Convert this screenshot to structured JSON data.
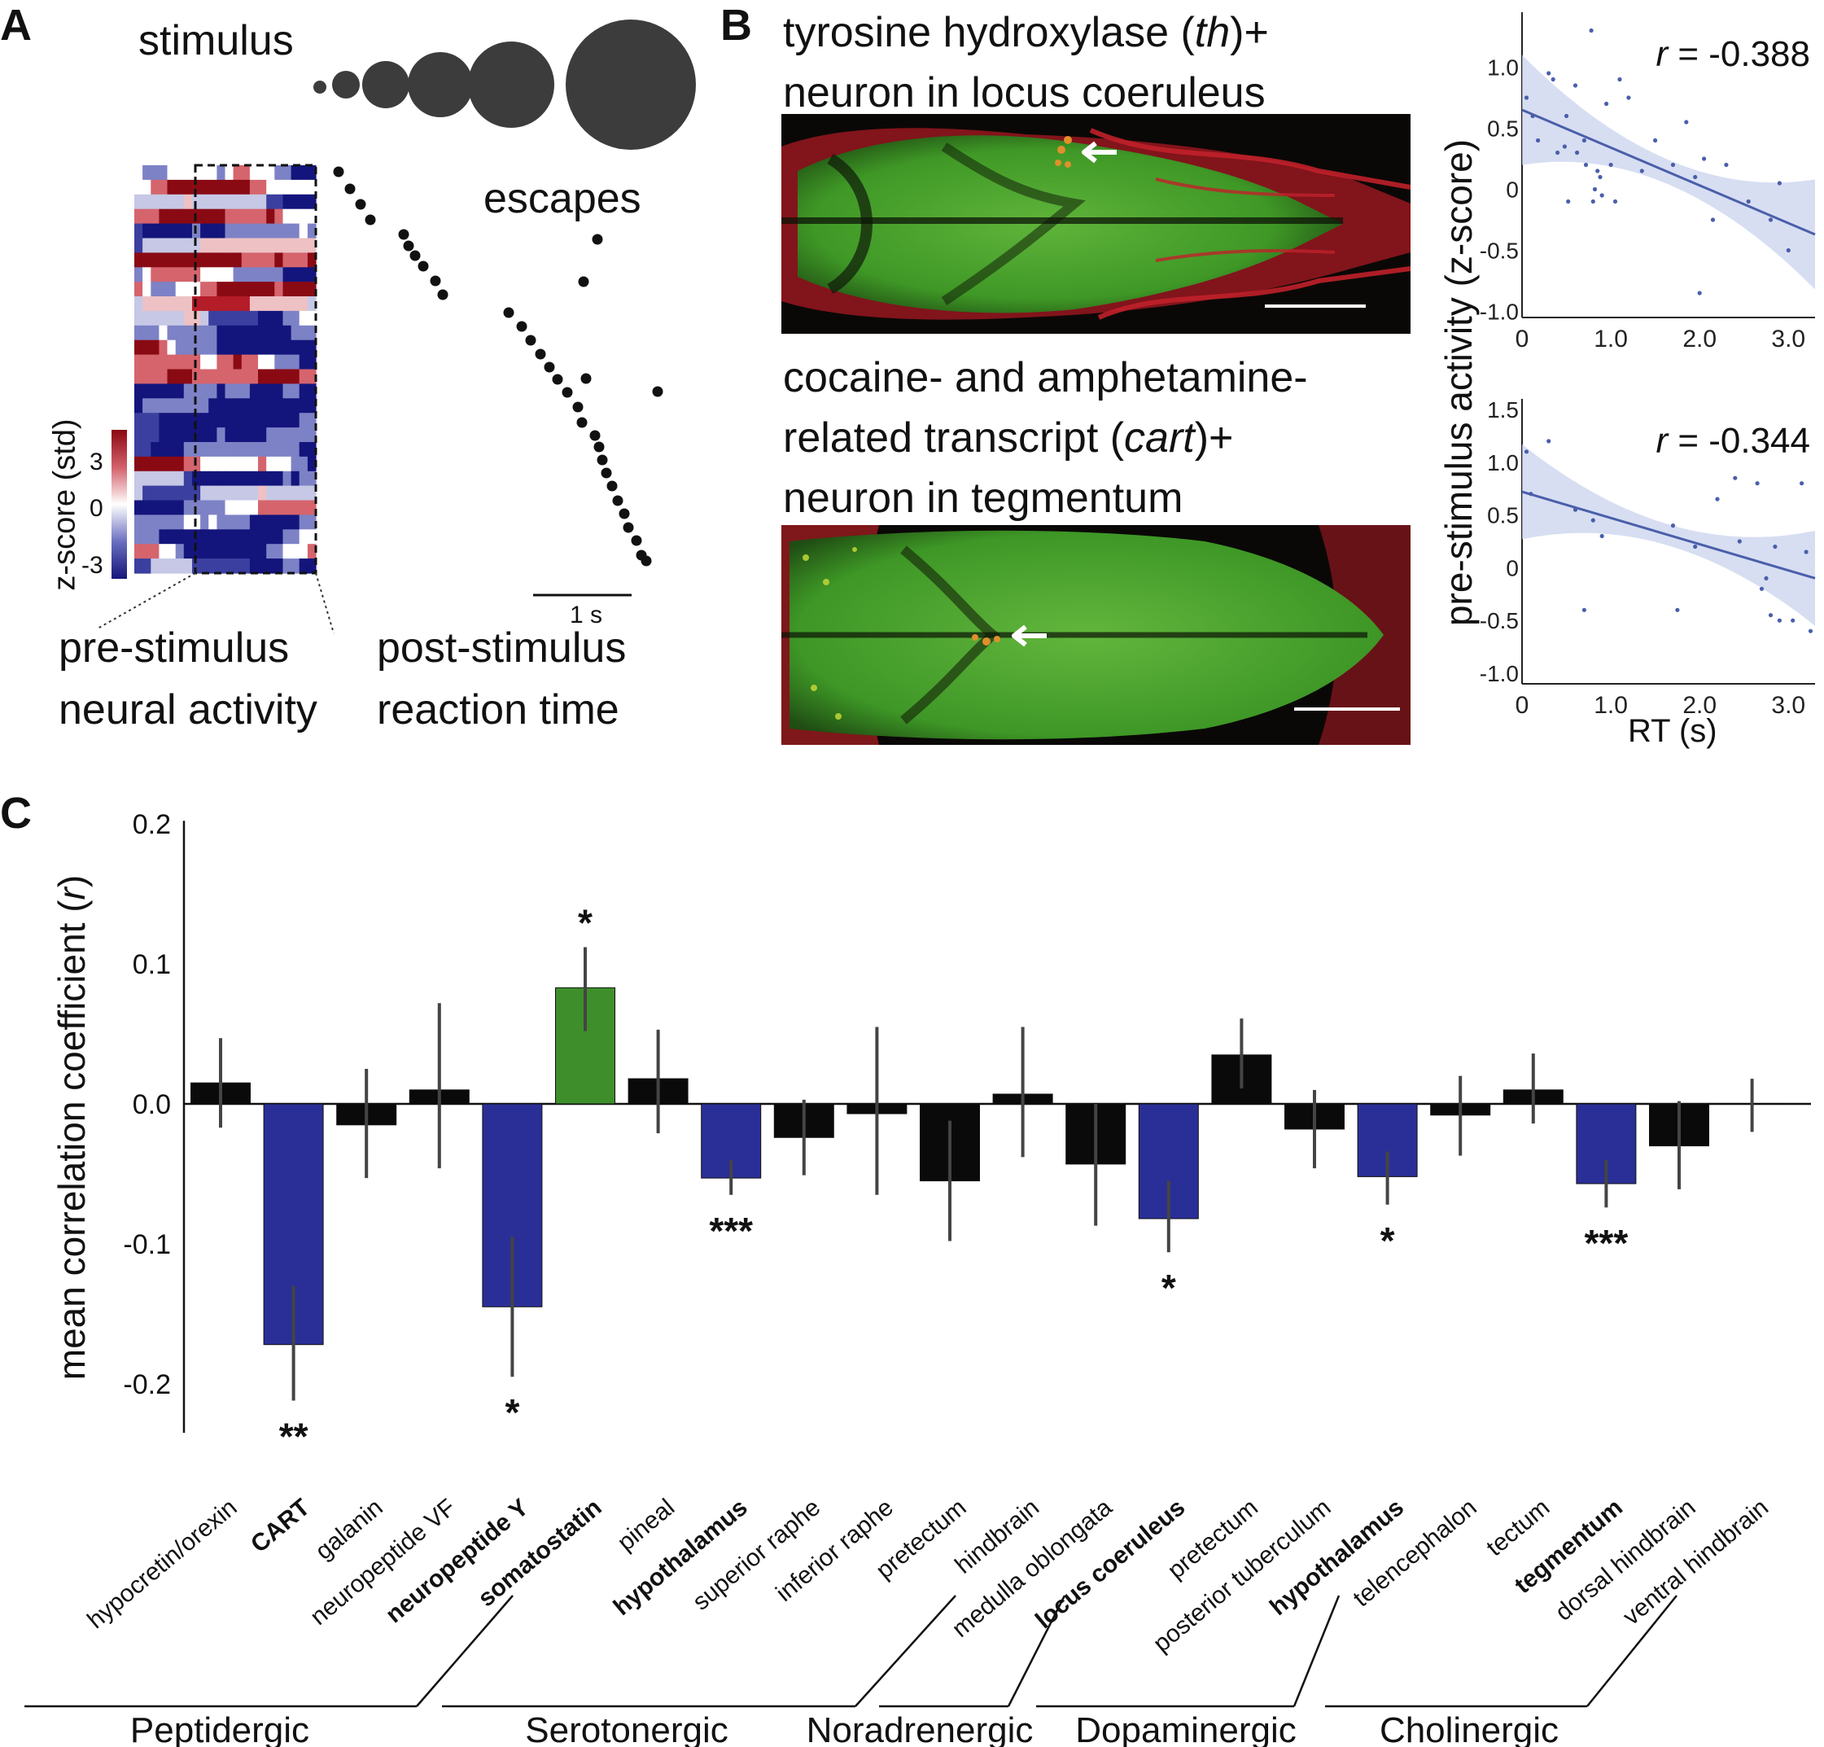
{
  "panel_a": {
    "label": "A",
    "stimulus_label": "stimulus",
    "escapes_label": "escapes",
    "colorbar": {
      "title": "z-score (std)",
      "ticks": [
        "3",
        "0",
        "-3"
      ]
    },
    "scalebar_label": "1 s",
    "pre_label": [
      "pre-stimulus",
      "neural activity"
    ],
    "post_label": [
      "post-stimulus",
      "reaction time"
    ]
  },
  "panel_b": {
    "label": "B",
    "th_title": [
      "tyrosine hydroxylase (",
      "th",
      ")+",
      "neuron in locus coeruleus"
    ],
    "cart_title": [
      "cocaine- and amphetamine-",
      "related transcript (",
      "cart",
      ")+",
      "neuron in tegmentum"
    ],
    "ylabel": "pre-stimulus activity (z-score)",
    "xlabel": "RT (s)"
  },
  "panel_c": {
    "label": "C"
  },
  "colors": {
    "blue": "#2a2f97",
    "green": "#3e8f2c",
    "black": "#0a0a0a",
    "red": "#b4101b",
    "fit": "#4a5faa"
  },
  "chart_data": [
    {
      "type": "scatter",
      "r_label": "r = -0.388",
      "x_ticks": [
        "0",
        "1.0",
        "2.0",
        "3.0"
      ],
      "y_ticks": [
        "1.0",
        "0.5",
        "0",
        "-0.5",
        "-1.0"
      ],
      "xlim": [
        0,
        3.3
      ],
      "ylim": [
        -1.05,
        1.45
      ],
      "fit": {
        "x0": 0,
        "y0": 0.65,
        "x1": 3.3,
        "y1": -0.37
      },
      "points": [
        [
          0.05,
          0.75
        ],
        [
          0.12,
          0.6
        ],
        [
          0.18,
          0.4
        ],
        [
          0.3,
          0.95
        ],
        [
          0.35,
          0.9
        ],
        [
          0.4,
          0.3
        ],
        [
          0.48,
          0.35
        ],
        [
          0.5,
          0.6
        ],
        [
          0.52,
          -0.1
        ],
        [
          0.6,
          0.85
        ],
        [
          0.62,
          0.3
        ],
        [
          0.7,
          0.4
        ],
        [
          0.72,
          0.2
        ],
        [
          0.78,
          1.3
        ],
        [
          0.8,
          -0.1
        ],
        [
          0.82,
          0.0
        ],
        [
          0.85,
          0.15
        ],
        [
          0.88,
          0.1
        ],
        [
          0.9,
          -0.05
        ],
        [
          0.95,
          0.7
        ],
        [
          1.0,
          0.2
        ],
        [
          1.05,
          -0.1
        ],
        [
          1.1,
          0.9
        ],
        [
          1.2,
          0.75
        ],
        [
          1.35,
          0.15
        ],
        [
          1.5,
          0.4
        ],
        [
          1.7,
          0.2
        ],
        [
          1.85,
          0.55
        ],
        [
          1.95,
          0.1
        ],
        [
          2.0,
          -0.85
        ],
        [
          2.05,
          0.25
        ],
        [
          2.15,
          -0.25
        ],
        [
          2.3,
          0.2
        ],
        [
          2.55,
          -0.1
        ],
        [
          2.8,
          -0.25
        ],
        [
          2.9,
          0.05
        ],
        [
          3.0,
          -0.5
        ]
      ]
    },
    {
      "type": "scatter",
      "r_label": "r = -0.344",
      "x_ticks": [
        "0",
        "1.0",
        "2.0",
        "3.0"
      ],
      "y_ticks": [
        "1.5",
        "1.0",
        "0.5",
        "0",
        "-0.5",
        "-1.0"
      ],
      "xlim": [
        0,
        3.3
      ],
      "ylim": [
        -1.1,
        1.6
      ],
      "fit": {
        "x0": 0,
        "y0": 0.72,
        "x1": 3.3,
        "y1": -0.1
      },
      "points": [
        [
          0.05,
          1.1
        ],
        [
          0.1,
          0.7
        ],
        [
          0.3,
          1.2
        ],
        [
          0.6,
          0.55
        ],
        [
          0.7,
          -0.4
        ],
        [
          0.8,
          0.45
        ],
        [
          0.9,
          0.3
        ],
        [
          1.7,
          0.4
        ],
        [
          1.75,
          -0.4
        ],
        [
          1.95,
          0.2
        ],
        [
          2.2,
          0.65
        ],
        [
          2.4,
          0.85
        ],
        [
          2.45,
          0.25
        ],
        [
          2.65,
          0.8
        ],
        [
          2.7,
          -0.2
        ],
        [
          2.75,
          -0.1
        ],
        [
          2.8,
          -0.45
        ],
        [
          2.85,
          0.2
        ],
        [
          2.9,
          -0.5
        ],
        [
          3.05,
          -0.5
        ],
        [
          3.15,
          0.8
        ],
        [
          3.2,
          0.15
        ],
        [
          3.25,
          -0.6
        ]
      ]
    },
    {
      "type": "bar",
      "ylabel_prefix": "mean correlation coefficient (",
      "ylabel_italic": "r",
      "ylabel_suffix": ")",
      "ylim": [
        -0.235,
        0.21
      ],
      "y_ticks": [
        0.2,
        0.1,
        0.0,
        -0.1,
        -0.2
      ],
      "y_tick_labels": [
        "0.2",
        "0.1",
        "0.0",
        "-0.1",
        "-0.2"
      ],
      "categories": [
        "hypocretin/orexin",
        "CART",
        "galanin",
        "neuropeptide VF",
        "neuropeptide Y",
        "somatostatin",
        "pineal",
        "hypothalamus",
        "superior raphe",
        "inferior raphe",
        "pretectum",
        "hindbrain",
        "medulla oblongata",
        "locus coeruleus",
        "pretectum",
        "posterior tuberculum",
        "hypothalamus",
        "telencephalon",
        "tectum",
        "tegmentum",
        "dorsal hindbrain",
        "ventral hindbrain"
      ],
      "bold": [
        false,
        true,
        false,
        false,
        true,
        true,
        false,
        true,
        false,
        false,
        false,
        false,
        false,
        true,
        false,
        false,
        true,
        false,
        false,
        true,
        false,
        false
      ],
      "values": [
        0.015,
        -0.172,
        -0.015,
        0.01,
        -0.145,
        0.083,
        0.018,
        -0.053,
        -0.024,
        -0.007,
        -0.055,
        0.007,
        -0.043,
        -0.082,
        0.035,
        -0.018,
        -0.052,
        -0.008,
        0.01,
        -0.057,
        -0.03,
        0.0
      ],
      "err_low": [
        -0.017,
        -0.212,
        -0.053,
        -0.046,
        -0.195,
        0.052,
        -0.021,
        -0.065,
        -0.051,
        -0.065,
        -0.098,
        -0.038,
        -0.087,
        -0.106,
        0.011,
        -0.046,
        -0.072,
        -0.037,
        -0.014,
        -0.074,
        -0.061,
        -0.02
      ],
      "err_high": [
        0.047,
        -0.13,
        0.025,
        0.072,
        -0.095,
        0.112,
        0.053,
        -0.04,
        0.003,
        0.055,
        -0.012,
        0.055,
        0.0,
        -0.055,
        0.061,
        0.01,
        -0.034,
        0.02,
        0.036,
        -0.04,
        0.002,
        0.018
      ],
      "bar_colors": [
        "black",
        "blue",
        "black",
        "black",
        "blue",
        "green",
        "black",
        "blue",
        "black",
        "black",
        "black",
        "black",
        "black",
        "blue",
        "black",
        "black",
        "blue",
        "black",
        "black",
        "blue",
        "black",
        "black"
      ],
      "significance": [
        "",
        "**",
        "",
        "",
        "*",
        "*",
        "",
        "***",
        "",
        "",
        "",
        "",
        "",
        "*",
        "",
        "",
        "*",
        "",
        "",
        "***",
        "",
        ""
      ],
      "groups": [
        "Peptidergic",
        "Serotonergic",
        "Noradrenergic",
        "Dopaminergic",
        "Cholinergic"
      ]
    }
  ]
}
